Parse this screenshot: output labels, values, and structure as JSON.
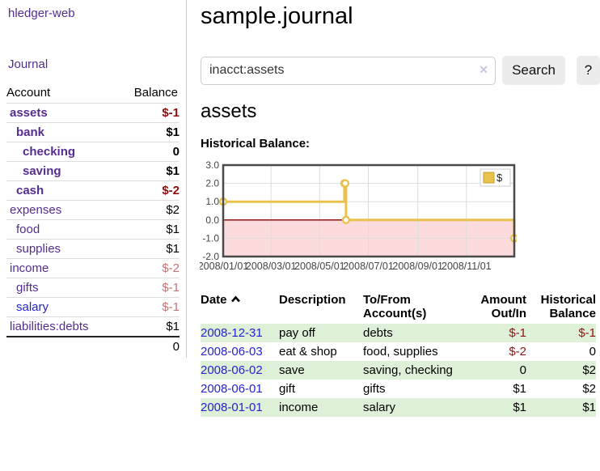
{
  "app": {
    "title": "hledger-web",
    "journal_link": "Journal"
  },
  "sidebar": {
    "account_header": "Account",
    "balance_header": "Balance",
    "accounts": [
      {
        "name": "assets",
        "depth": 1,
        "bold": true,
        "link_color": "purple",
        "balance": "$-1",
        "balance_class": "neg-strong"
      },
      {
        "name": "bank",
        "depth": 2,
        "bold": true,
        "link_color": "purple",
        "balance": "$1",
        "balance_class": "bold"
      },
      {
        "name": "checking",
        "depth": 3,
        "bold": true,
        "link_color": "purple",
        "balance": "0",
        "balance_class": "bold"
      },
      {
        "name": "saving",
        "depth": 3,
        "bold": true,
        "link_color": "purple",
        "balance": "$1",
        "balance_class": "bold"
      },
      {
        "name": "cash",
        "depth": 2,
        "bold": true,
        "link_color": "purple",
        "balance": "$-2",
        "balance_class": "neg-strong"
      },
      {
        "name": "expenses",
        "depth": 1,
        "bold": false,
        "link_color": "purple",
        "balance": "$2",
        "balance_class": ""
      },
      {
        "name": "food",
        "depth": 2,
        "bold": false,
        "link_color": "purple",
        "balance": "$1",
        "balance_class": ""
      },
      {
        "name": "supplies",
        "depth": 2,
        "bold": false,
        "link_color": "purple",
        "balance": "$1",
        "balance_class": ""
      },
      {
        "name": "income",
        "depth": 1,
        "bold": false,
        "link_color": "purple",
        "balance": "$-2",
        "balance_class": "neg-faded"
      },
      {
        "name": "gifts",
        "depth": 2,
        "bold": false,
        "link_color": "purple",
        "balance": "$-1",
        "balance_class": "neg-faded"
      },
      {
        "name": "salary",
        "depth": 2,
        "bold": false,
        "link_color": "blue",
        "balance": "$-1",
        "balance_class": "neg-faded"
      },
      {
        "name": "liabilities:debts",
        "depth": 1,
        "bold": false,
        "link_color": "purple",
        "balance": "$1",
        "balance_class": ""
      }
    ],
    "total": "0"
  },
  "header": {
    "title": "sample.journal"
  },
  "search": {
    "value": "inacct:assets",
    "clear_icon": "✕",
    "button_label": "Search",
    "help_label": "?"
  },
  "account_page": {
    "title": "assets",
    "chart_label": "Historical Balance:"
  },
  "chart_data": {
    "type": "line",
    "step": true,
    "title": "Historical Balance",
    "series": [
      {
        "name": "$",
        "color": "#e8c24d",
        "points": [
          [
            "2008-01-01",
            1
          ],
          [
            "2008-06-01",
            2
          ],
          [
            "2008-06-02",
            2
          ],
          [
            "2008-06-03",
            0
          ],
          [
            "2008-12-31",
            -1
          ]
        ]
      }
    ],
    "ylim": [
      -2,
      3
    ],
    "yticks": [
      "3.0",
      "2.0",
      "1.0",
      "0.0",
      "-1.0",
      "-2.0"
    ],
    "ytick_values": [
      3,
      2,
      1,
      0,
      -1,
      -2
    ],
    "xticks": [
      "2008/01/01",
      "2008/03/01",
      "2008/05/01",
      "2008/07/01",
      "2008/09/01",
      "2008/11/01"
    ],
    "xtick_dates": [
      "2008-01-01",
      "2008-03-01",
      "2008-05-01",
      "2008-07-01",
      "2008-09-01",
      "2008-11-01"
    ],
    "legend": "$",
    "legend_position": "top-right",
    "grid": true,
    "colors": {
      "grid": "#dddddd",
      "border": "#4a4a4a",
      "zero_line": "#8b0000",
      "negative_region": "#fbdbdb",
      "tick_label": "#444444"
    }
  },
  "register": {
    "columns": [
      "Date",
      "Description",
      "To/From Account(s)",
      "Amount Out/In",
      "Historical Balance"
    ],
    "sort": "ascending",
    "rows": [
      {
        "date": "2008-12-31",
        "description": "pay off",
        "accounts": "debts",
        "amount": "$-1",
        "amount_negative": true,
        "balance": "$-1",
        "balance_negative": true
      },
      {
        "date": "2008-06-03",
        "description": "eat & shop",
        "accounts": "food, supplies",
        "amount": "$-2",
        "amount_negative": true,
        "balance": "0",
        "balance_negative": false
      },
      {
        "date": "2008-06-02",
        "description": "save",
        "accounts": "saving, checking",
        "amount": "0",
        "amount_negative": false,
        "balance": "$2",
        "balance_negative": false
      },
      {
        "date": "2008-06-01",
        "description": "gift",
        "accounts": "gifts",
        "amount": "$1",
        "amount_negative": false,
        "balance": "$2",
        "balance_negative": false
      },
      {
        "date": "2008-01-01",
        "description": "income",
        "accounts": "salary",
        "amount": "$1",
        "amount_negative": false,
        "balance": "$1",
        "balance_negative": false
      }
    ]
  }
}
